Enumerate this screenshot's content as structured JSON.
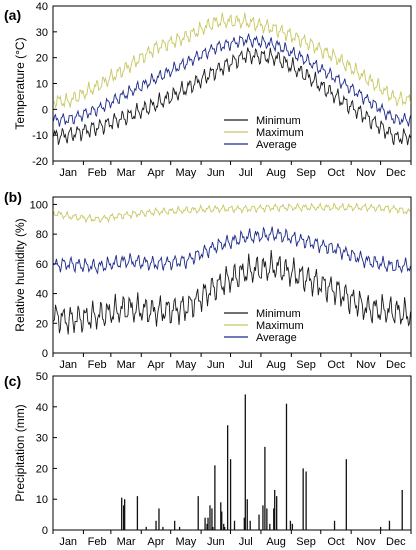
{
  "chart_data": [
    {
      "type": "line",
      "panel_label": "(a)",
      "ylabel": "Temperature (°C)",
      "ylim": [
        -20,
        40
      ],
      "yticks": [
        -20,
        -10,
        0,
        10,
        20,
        30,
        40
      ],
      "months": [
        "Jan",
        "Feb",
        "Mar",
        "Apr",
        "May",
        "Jun",
        "Jul",
        "Aug",
        "Sep",
        "Oct",
        "Nov",
        "Dec"
      ],
      "legend_position": "lower-right",
      "x": [
        15,
        45,
        74,
        105,
        135,
        166,
        196,
        227,
        258,
        288,
        319,
        349
      ],
      "series": [
        {
          "name": "Minimum",
          "color": "#1a1a1a",
          "values": [
            -10,
            -7,
            -3,
            2,
            8,
            15,
            21,
            20,
            13,
            5,
            -3,
            -11
          ]
        },
        {
          "name": "Maximum",
          "color": "#c8c864",
          "values": [
            3,
            9,
            16,
            24,
            28,
            34,
            34,
            31,
            26,
            20,
            12,
            4
          ]
        },
        {
          "name": "Average",
          "color": "#1f2a8a",
          "values": [
            -4,
            0,
            6,
            12,
            18,
            24,
            27,
            25,
            19,
            12,
            4,
            -4
          ]
        }
      ]
    },
    {
      "type": "line",
      "panel_label": "(b)",
      "ylabel": "Relative humidity (%)",
      "ylim": [
        0,
        105
      ],
      "yticks": [
        0,
        20,
        40,
        60,
        80,
        100
      ],
      "months": [
        "Jan",
        "Feb",
        "Mar",
        "Apr",
        "May",
        "Jun",
        "Jul",
        "Aug",
        "Sep",
        "Oct",
        "Nov",
        "Dec"
      ],
      "legend_position": "lower-right",
      "x": [
        15,
        45,
        74,
        105,
        135,
        166,
        196,
        227,
        258,
        288,
        319,
        349
      ],
      "series": [
        {
          "name": "Minimum",
          "color": "#1a1a1a",
          "values": [
            22,
            25,
            30,
            28,
            30,
            45,
            55,
            58,
            50,
            42,
            30,
            28
          ]
        },
        {
          "name": "Maximum",
          "color": "#c8c864",
          "values": [
            92,
            90,
            93,
            95,
            96,
            97,
            97,
            98,
            98,
            98,
            98,
            97
          ]
        },
        {
          "name": "Average",
          "color": "#1f2a8a",
          "values": [
            60,
            58,
            62,
            60,
            62,
            72,
            78,
            80,
            75,
            70,
            62,
            58
          ]
        }
      ]
    },
    {
      "type": "bar",
      "panel_label": "(c)",
      "ylabel": "Precipitation (mm)",
      "ylim": [
        0,
        50
      ],
      "yticks": [
        0,
        10,
        20,
        30,
        40,
        50
      ],
      "months": [
        "Jan",
        "Feb",
        "Mar",
        "Apr",
        "May",
        "Jun",
        "Jul",
        "Aug",
        "Sep",
        "Oct",
        "Nov",
        "Dec"
      ],
      "days": [
        70,
        72,
        73,
        86,
        95,
        105,
        108,
        112,
        124,
        129,
        148,
        155,
        157,
        158,
        160,
        162,
        163,
        165,
        171,
        172,
        174,
        175,
        178,
        181,
        185,
        195,
        196,
        198,
        201,
        210,
        214,
        216,
        218,
        221,
        225,
        226,
        228,
        238,
        242,
        244,
        255,
        258,
        287,
        299,
        334,
        343,
        356
      ],
      "values": [
        10.5,
        8,
        10,
        11,
        1,
        3,
        7,
        1,
        3,
        1,
        11,
        4,
        2,
        4,
        8,
        7,
        1,
        21,
        9,
        6,
        2,
        1,
        34,
        23,
        3,
        4,
        44,
        10,
        3,
        5,
        8,
        27,
        7,
        2,
        7,
        13,
        11,
        41,
        3,
        2,
        20,
        19,
        3,
        23,
        1,
        3,
        13
      ]
    }
  ]
}
